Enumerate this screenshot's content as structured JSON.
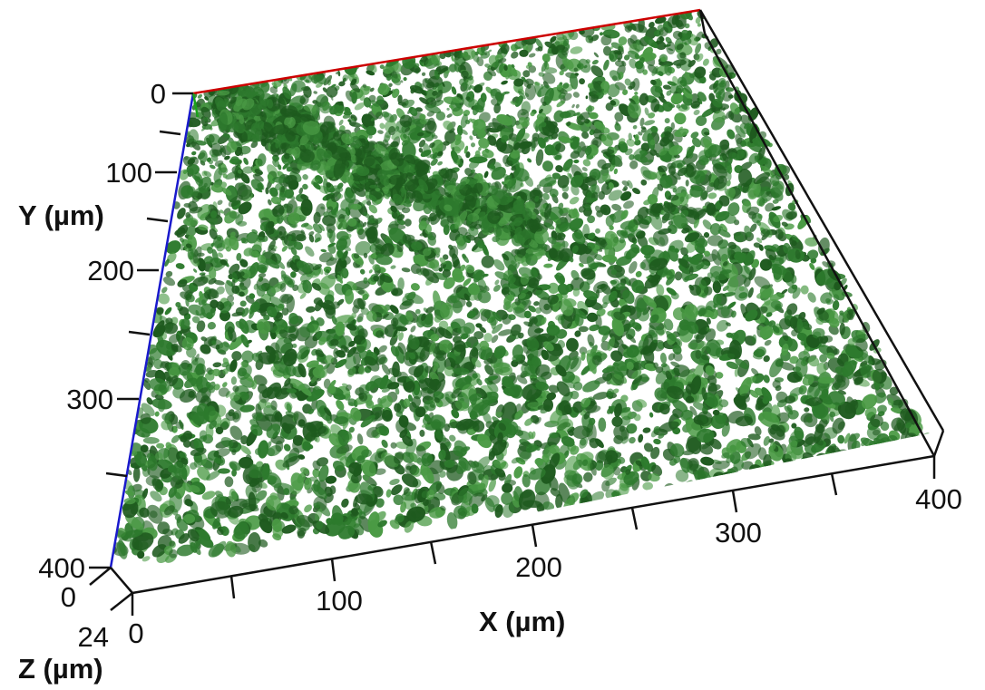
{
  "x_axis": {
    "title": "X (µm)",
    "ticks": [
      "0",
      "100",
      "200",
      "300",
      "400"
    ],
    "range": [
      0,
      400
    ],
    "color": "#cc0000"
  },
  "y_axis": {
    "title": "Y (µm)",
    "ticks": [
      "0",
      "100",
      "200",
      "300",
      "400"
    ],
    "range": [
      0,
      400
    ],
    "color": "#1a1acc"
  },
  "z_axis": {
    "title": "Z (µm)",
    "ticks": [
      "0",
      "24"
    ],
    "range": [
      0,
      24
    ],
    "color": "#1aa31a"
  },
  "colors": {
    "cells_dark": "#1e5a1e",
    "cells_mid": "#2d7a2d",
    "cells_light": "#4a9a44",
    "box_edge": "#111111"
  }
}
